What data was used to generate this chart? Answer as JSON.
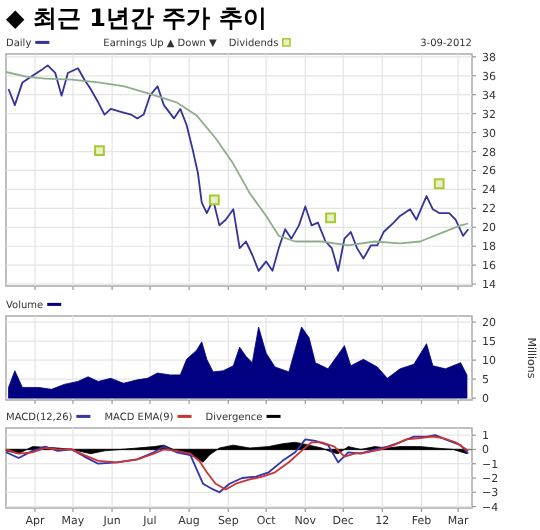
{
  "chart_data": [
    {
      "type": "line",
      "title": "◆ 최근 1년간 주가 추이",
      "annotations": [
        "Earnings Up ▲ Down ▼",
        "3-09-2012"
      ],
      "legend": "top left",
      "xlim": [
        "2011-03-09",
        "2012-03-12"
      ],
      "ylim": [
        13.8,
        38.3
      ],
      "yticks": [
        14,
        16,
        18,
        20,
        22,
        24,
        26,
        28,
        30,
        32,
        34,
        36,
        38
      ],
      "xticks": [
        {
          "value": "2011-04-01",
          "label": null
        },
        {
          "value": "2011-05-01",
          "label": null
        },
        {
          "value": "2011-06-01",
          "label": null
        },
        {
          "value": "2011-07-01",
          "label": null
        },
        {
          "value": "2011-08-01",
          "label": null
        },
        {
          "value": "2011-09-01",
          "label": null
        },
        {
          "value": "2011-10-01",
          "label": null
        },
        {
          "value": "2011-11-01",
          "label": null
        },
        {
          "value": "2011-12-01",
          "label": null
        },
        {
          "value": "2012-01-01",
          "label": null
        },
        {
          "value": "2012-02-01",
          "label": null
        },
        {
          "value": "2012-03-01",
          "label": null
        }
      ],
      "tick_labels": "y",
      "grid": true,
      "series": [
        {
          "name": "Daily",
          "color": "#333399",
          "x": [
            "2011-03-11",
            "2011-03-16",
            "2011-03-22",
            "2011-03-30",
            "2011-04-06",
            "2011-04-11",
            "2011-04-17",
            "2011-04-22",
            "2011-04-27",
            "2011-05-05",
            "2011-05-10",
            "2011-05-15",
            "2011-05-21",
            "2011-05-26",
            "2011-05-31",
            "2011-06-08",
            "2011-06-16",
            "2011-06-21",
            "2011-06-26",
            "2011-07-01",
            "2011-07-07",
            "2011-07-12",
            "2011-07-20",
            "2011-07-25",
            "2011-07-30",
            "2011-08-04",
            "2011-08-08",
            "2011-08-11",
            "2011-08-15",
            "2011-08-20",
            "2011-08-25",
            "2011-08-30",
            "2011-09-05",
            "2011-09-10",
            "2011-09-15",
            "2011-09-20",
            "2011-09-25",
            "2011-10-01",
            "2011-10-06",
            "2011-10-11",
            "2011-10-16",
            "2011-10-21",
            "2011-10-27",
            "2011-11-01",
            "2011-11-06",
            "2011-11-11",
            "2011-11-17",
            "2011-11-22",
            "2011-11-27",
            "2011-12-02",
            "2011-12-07",
            "2011-12-12",
            "2011-12-17",
            "2011-12-23",
            "2011-12-28",
            "2012-01-02",
            "2012-01-10",
            "2012-01-15",
            "2012-01-23",
            "2012-01-28",
            "2012-02-05",
            "2012-02-10",
            "2012-02-15",
            "2012-02-23",
            "2012-02-28",
            "2012-03-05",
            "2012-03-09"
          ],
          "values": [
            34.6,
            32.9,
            35.3,
            36,
            36.6,
            37.1,
            36.3,
            33.9,
            36.3,
            36.8,
            35.6,
            34.6,
            33.2,
            31.9,
            32.5,
            32.2,
            31.9,
            31.5,
            31.9,
            33.9,
            34.9,
            32.9,
            31.5,
            32.5,
            30.8,
            28.1,
            25.7,
            22.6,
            21.5,
            22.9,
            20.2,
            20.8,
            21.9,
            17.8,
            18.5,
            17.1,
            15.4,
            16.4,
            15.4,
            17.8,
            19.8,
            18.8,
            20.2,
            22.2,
            20.2,
            20.5,
            18.5,
            17.8,
            15.4,
            18.8,
            19.5,
            17.8,
            16.7,
            18.1,
            18.1,
            19.5,
            20.5,
            21.2,
            21.9,
            20.8,
            23.3,
            21.9,
            21.5,
            21.5,
            20.8,
            19.1,
            19.8
          ]
        },
        {
          "color": "#8fae8a",
          "x": [
            "2011-03-09",
            "2011-03-25",
            "2011-04-09",
            "2011-04-30",
            "2011-05-21",
            "2011-06-10",
            "2011-07-01",
            "2011-07-22",
            "2011-08-07",
            "2011-08-22",
            "2011-09-05",
            "2011-09-18",
            "2011-10-01",
            "2011-10-11",
            "2011-10-24",
            "2011-11-14",
            "2011-12-05",
            "2011-12-26",
            "2012-01-15",
            "2012-01-31",
            "2012-02-15",
            "2012-03-03",
            "2012-03-09"
          ],
          "values": [
            36.4,
            35.9,
            35.7,
            35.6,
            35.3,
            34.9,
            34.1,
            33.2,
            31.8,
            29.4,
            26.7,
            23.6,
            21.2,
            19.1,
            18.5,
            18.5,
            18.1,
            18.5,
            18.3,
            18.5,
            19.3,
            20.2,
            20.4
          ]
        },
        {
          "name": "Dividends",
          "type": "scatter",
          "marker": "square",
          "color": "#a8c83c",
          "x": [
            "2011-05-22",
            "2011-08-21",
            "2011-11-21",
            "2012-02-15"
          ],
          "values": [
            28.1,
            22.9,
            21.0,
            24.6
          ]
        }
      ]
    },
    {
      "type": "area",
      "ylabel": "Millions",
      "legend": "top left",
      "xlim": [
        "2011-03-09",
        "2012-03-12"
      ],
      "ylim": [
        -0.5,
        21.6
      ],
      "yticks": [
        0,
        5,
        10,
        15,
        20
      ],
      "xticks": [
        {
          "value": "2011-04-01",
          "label": null
        },
        {
          "value": "2011-05-01",
          "label": null
        },
        {
          "value": "2011-06-01",
          "label": null
        },
        {
          "value": "2011-07-01",
          "label": null
        },
        {
          "value": "2011-08-01",
          "label": null
        },
        {
          "value": "2011-09-01",
          "label": null
        },
        {
          "value": "2011-10-01",
          "label": null
        },
        {
          "value": "2011-11-01",
          "label": null
        },
        {
          "value": "2011-12-01",
          "label": null
        },
        {
          "value": "2012-01-01",
          "label": null
        },
        {
          "value": "2012-02-01",
          "label": null
        },
        {
          "value": "2012-03-01",
          "label": null
        }
      ],
      "tick_labels": "y",
      "grid": true,
      "series": [
        {
          "name": "Volume",
          "color": "#000080",
          "x": [
            "2011-03-11",
            "2011-03-16",
            "2011-03-22",
            "2011-04-04",
            "2011-04-14",
            "2011-04-24",
            "2011-05-05",
            "2011-05-13",
            "2011-05-21",
            "2011-05-31",
            "2011-06-10",
            "2011-06-21",
            "2011-06-29",
            "2011-07-07",
            "2011-07-17",
            "2011-07-25",
            "2011-07-30",
            "2011-08-07",
            "2011-08-11",
            "2011-08-15",
            "2011-08-20",
            "2011-08-28",
            "2011-09-05",
            "2011-09-10",
            "2011-09-15",
            "2011-09-20",
            "2011-09-25",
            "2011-10-01",
            "2011-10-08",
            "2011-10-19",
            "2011-10-29",
            "2011-11-04",
            "2011-11-09",
            "2011-11-19",
            "2011-12-02",
            "2011-12-07",
            "2011-12-17",
            "2011-12-28",
            "2012-01-05",
            "2012-01-15",
            "2012-01-26",
            "2012-02-05",
            "2012-02-10",
            "2012-02-20",
            "2012-03-03",
            "2012-03-08"
          ],
          "values": [
            2.8,
            7.2,
            2.8,
            2.8,
            2.3,
            3.6,
            4.4,
            5.6,
            4.4,
            5.2,
            3.9,
            4.8,
            5.2,
            6.6,
            6.1,
            6.1,
            10.2,
            12.6,
            14.8,
            10.2,
            6.9,
            7.2,
            8.5,
            13.4,
            11,
            9.3,
            18.7,
            11.8,
            8.2,
            6.9,
            18.7,
            15.9,
            9.3,
            7.7,
            13.8,
            8.5,
            10.2,
            8.2,
            5.2,
            7.7,
            8.9,
            14.3,
            8.5,
            7.7,
            9.3,
            6.1
          ]
        }
      ]
    },
    {
      "type": "line",
      "legend": "top left",
      "xlim": [
        "2011-03-09",
        "2012-03-12"
      ],
      "ylim": [
        -4.1,
        1.5
      ],
      "yticks": [
        1,
        0,
        -1,
        -2,
        -3,
        -4
      ],
      "xticks": [
        {
          "value": "2011-04-01",
          "label": "Apr"
        },
        {
          "value": "2011-05-01",
          "label": "May"
        },
        {
          "value": "2011-06-01",
          "label": "Jun"
        },
        {
          "value": "2011-07-01",
          "label": "Jul"
        },
        {
          "value": "2011-08-01",
          "label": "Aug"
        },
        {
          "value": "2011-09-01",
          "label": "Sep"
        },
        {
          "value": "2011-10-01",
          "label": "Oct"
        },
        {
          "value": "2011-11-01",
          "label": "Nov"
        },
        {
          "value": "2011-12-01",
          "label": "Dec"
        },
        {
          "value": "2012-01-01",
          "label": "12"
        },
        {
          "value": "2012-02-01",
          "label": "Feb"
        },
        {
          "value": "2012-03-01",
          "label": "Mar"
        }
      ],
      "grid": true,
      "ref_lines": [
        {
          "axis": "y",
          "value": 0,
          "color": "#808080"
        }
      ],
      "series": [
        {
          "name": "MACD(12,26)",
          "color": "#3333aa",
          "x": [
            "2011-03-09",
            "2011-03-19",
            "2011-03-30",
            "2011-04-09",
            "2011-04-19",
            "2011-04-30",
            "2011-05-10",
            "2011-05-21",
            "2011-06-05",
            "2011-06-21",
            "2011-07-04",
            "2011-07-12",
            "2011-07-22",
            "2011-08-02",
            "2011-08-07",
            "2011-08-12",
            "2011-08-20",
            "2011-08-25",
            "2011-09-02",
            "2011-09-12",
            "2011-09-23",
            "2011-10-03",
            "2011-10-14",
            "2011-10-24",
            "2011-11-01",
            "2011-11-09",
            "2011-11-19",
            "2011-11-27",
            "2011-12-05",
            "2011-12-15",
            "2011-12-26",
            "2012-01-05",
            "2012-01-15",
            "2012-01-26",
            "2012-02-05",
            "2012-02-12",
            "2012-02-20",
            "2012-03-03",
            "2012-03-09"
          ],
          "values": [
            -0.2,
            -0.6,
            -0.1,
            0.2,
            -0.1,
            0,
            -0.5,
            -1,
            -0.9,
            -0.7,
            -0.2,
            0.2,
            -0.2,
            -0.4,
            -1.4,
            -2.4,
            -2.8,
            -3,
            -2.4,
            -2,
            -1.9,
            -1.6,
            -0.8,
            -0.2,
            0.7,
            0.6,
            0.3,
            -0.9,
            -0.2,
            -0.3,
            0,
            0.2,
            0.5,
            0.9,
            0.9,
            1,
            0.7,
            0.3,
            -0.3
          ]
        },
        {
          "name": "MACD EMA(9)",
          "color": "#cc3333",
          "x": [
            "2011-03-09",
            "2011-03-19",
            "2011-03-30",
            "2011-04-09",
            "2011-04-19",
            "2011-04-30",
            "2011-05-10",
            "2011-05-21",
            "2011-06-05",
            "2011-06-21",
            "2011-07-04",
            "2011-07-12",
            "2011-07-22",
            "2011-08-02",
            "2011-08-09",
            "2011-08-15",
            "2011-08-22",
            "2011-08-30",
            "2011-09-07",
            "2011-09-18",
            "2011-09-28",
            "2011-10-08",
            "2011-10-19",
            "2011-10-29",
            "2011-11-06",
            "2011-11-14",
            "2011-11-24",
            "2011-12-02",
            "2011-12-10",
            "2011-12-20",
            "2011-12-31",
            "2012-01-10",
            "2012-01-20",
            "2012-01-31",
            "2012-02-10",
            "2012-02-18",
            "2012-02-28",
            "2012-03-09"
          ],
          "values": [
            0,
            -0.3,
            -0.2,
            0.1,
            0,
            0,
            -0.4,
            -0.8,
            -0.9,
            -0.7,
            -0.3,
            0,
            -0.1,
            -0.3,
            -0.8,
            -1.6,
            -2.4,
            -2.8,
            -2.4,
            -2.1,
            -1.9,
            -1.6,
            -0.9,
            -0.1,
            0.5,
            0.5,
            0.2,
            -0.5,
            -0.3,
            -0.2,
            0,
            0.3,
            0.7,
            0.8,
            0.9,
            0.8,
            0.5,
            -0.1
          ]
        },
        {
          "name": "Divergence",
          "type": "area",
          "color": "#000000",
          "x": [
            "2011-03-09",
            "2011-03-19",
            "2011-03-30",
            "2011-04-19",
            "2011-04-30",
            "2011-05-15",
            "2011-05-26",
            "2011-06-21",
            "2011-07-04",
            "2011-07-12",
            "2011-07-22",
            "2011-07-30",
            "2011-08-07",
            "2011-08-12",
            "2011-08-17",
            "2011-08-25",
            "2011-09-05",
            "2011-09-18",
            "2011-10-03",
            "2011-10-14",
            "2011-10-24",
            "2011-11-04",
            "2011-11-14",
            "2011-11-22",
            "2011-11-27",
            "2011-12-05",
            "2011-12-15",
            "2011-12-26",
            "2012-01-05",
            "2012-01-15",
            "2012-01-31",
            "2012-02-12",
            "2012-02-26",
            "2012-03-08"
          ],
          "values": [
            -0.1,
            -0.3,
            0.2,
            0.1,
            0,
            -0.3,
            -0.1,
            0.1,
            0.2,
            0.3,
            -0.1,
            -0.3,
            -0.6,
            -0.9,
            -0.4,
            0.1,
            0.3,
            0.1,
            0.2,
            0.4,
            0.5,
            0.3,
            0.1,
            -0.2,
            -0.3,
            0.2,
            0,
            0.2,
            0.1,
            0.2,
            0.2,
            0.1,
            0,
            -0.3
          ]
        }
      ]
    }
  ]
}
